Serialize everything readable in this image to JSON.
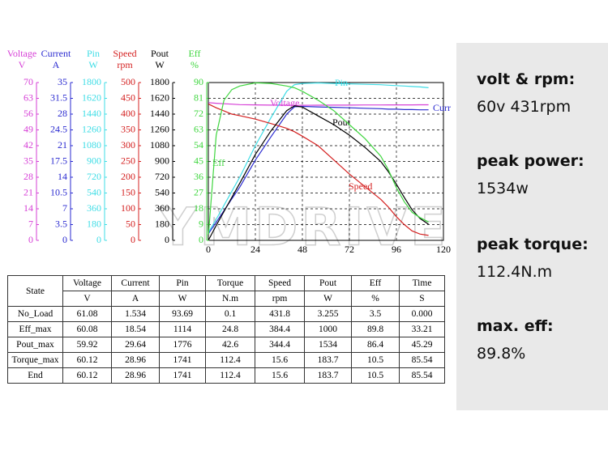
{
  "chart_data": {
    "type": "line",
    "x": [
      0.1,
      4,
      8,
      12,
      16,
      24,
      32,
      40,
      44,
      48,
      56,
      64,
      72,
      80,
      88,
      92,
      96,
      100,
      104,
      108,
      112.4
    ],
    "xlim": [
      0,
      120
    ],
    "xticks": [
      0,
      24,
      48,
      72,
      96,
      120
    ],
    "grid": true,
    "axes": [
      {
        "name": "Voltage",
        "unit": "V",
        "color": "#d63fd6",
        "ylim": [
          0,
          70
        ],
        "yticks": [
          0,
          7,
          14,
          21,
          28,
          35,
          42,
          49,
          56,
          63,
          70
        ]
      },
      {
        "name": "Current",
        "unit": "A",
        "color": "#2a2ad0",
        "ylim": [
          0,
          35
        ],
        "yticks": [
          0,
          3.5,
          7,
          10.5,
          14,
          17.5,
          21,
          24.5,
          28,
          31.5,
          35
        ]
      },
      {
        "name": "Pin",
        "unit": "W",
        "color": "#3fdde6",
        "ylim": [
          0,
          1800
        ],
        "yticks": [
          0,
          180,
          360,
          540,
          720,
          900,
          1080,
          1260,
          1440,
          1620,
          1800
        ]
      },
      {
        "name": "Speed",
        "unit": "rpm",
        "color": "#d42020",
        "ylim": [
          0,
          500
        ],
        "yticks": [
          0,
          50,
          100,
          150,
          200,
          250,
          300,
          350,
          400,
          450,
          500
        ]
      },
      {
        "name": "Pout",
        "unit": "W",
        "color": "#000000",
        "ylim": [
          0,
          1800
        ],
        "yticks": [
          0,
          180,
          360,
          540,
          720,
          900,
          1080,
          1260,
          1440,
          1620,
          1800
        ]
      },
      {
        "name": "Eff",
        "unit": "%",
        "color": "#3fd63f",
        "ylim": [
          0,
          90
        ],
        "yticks": [
          0,
          9,
          18,
          27,
          36,
          45,
          54,
          63,
          72,
          81,
          90
        ]
      }
    ],
    "series": [
      {
        "name": "Voltage",
        "axis": 0,
        "color": "#d63fd6",
        "values": [
          61.08,
          60.8,
          60.6,
          60.4,
          60.2,
          60.08,
          60,
          59.95,
          59.92,
          59.9,
          59.95,
          60,
          60,
          60.05,
          60.05,
          60.1,
          60.1,
          60.1,
          60.1,
          60.12,
          60.12
        ]
      },
      {
        "name": "Curr",
        "axis": 1,
        "color": "#2a2ad0",
        "values": [
          1.534,
          4,
          6.6,
          9.2,
          11.8,
          17.8,
          23,
          28,
          29.64,
          29.7,
          29.6,
          29.5,
          29.4,
          29.3,
          29.2,
          29.1,
          29.1,
          29,
          29,
          28.96,
          28.96
        ]
      },
      {
        "name": "Pin",
        "axis": 2,
        "color": "#3fdde6",
        "values": [
          93.69,
          240,
          400,
          560,
          720,
          1080,
          1400,
          1700,
          1776,
          1790,
          1795,
          1790,
          1785,
          1780,
          1775,
          1770,
          1765,
          1760,
          1755,
          1750,
          1741
        ]
      },
      {
        "name": "Speed",
        "axis": 3,
        "color": "#d42020",
        "values": [
          431.8,
          420,
          410,
          400,
          395,
          384,
          370,
          355,
          344,
          330,
          300,
          255,
          210,
          170,
          130,
          105,
          75,
          50,
          30,
          20,
          15.6
        ]
      },
      {
        "name": "Pout",
        "axis": 4,
        "color": "#000000",
        "values": [
          3.255,
          170,
          330,
          490,
          650,
          980,
          1250,
          1480,
          1534,
          1520,
          1420,
          1320,
          1200,
          1060,
          900,
          780,
          640,
          490,
          350,
          250,
          183.7
        ]
      },
      {
        "name": "Eff",
        "axis": 5,
        "color": "#3fd63f",
        "values": [
          3.5,
          60,
          80,
          86,
          88,
          89.8,
          89.5,
          88,
          87,
          85,
          80,
          74,
          66,
          58,
          48,
          40,
          30,
          22,
          16,
          13,
          10.5
        ]
      }
    ]
  },
  "watermark": "YMDRIVE",
  "table": {
    "header": [
      "State",
      "Voltage",
      "Current",
      "Pin",
      "Torque",
      "Speed",
      "Pout",
      "Eff",
      "Time"
    ],
    "units": [
      "V",
      "A",
      "W",
      "N.m",
      "rpm",
      "W",
      "%",
      "S"
    ],
    "rows": [
      [
        "No_Load",
        "61.08",
        "1.534",
        "93.69",
        "0.1",
        "431.8",
        "3.255",
        "3.5",
        "0.000"
      ],
      [
        "Eff_max",
        "60.08",
        "18.54",
        "1114",
        "24.8",
        "384.4",
        "1000",
        "89.8",
        "33.21"
      ],
      [
        "Pout_max",
        "59.92",
        "29.64",
        "1776",
        "42.6",
        "344.4",
        "1534",
        "86.4",
        "45.29"
      ],
      [
        "Torque_max",
        "60.12",
        "28.96",
        "1741",
        "112.4",
        "15.6",
        "183.7",
        "10.5",
        "85.54"
      ],
      [
        "End",
        "60.12",
        "28.96",
        "1741",
        "112.4",
        "15.6",
        "183.7",
        "10.5",
        "85.54"
      ]
    ]
  },
  "panel": [
    {
      "label": "volt & rpm:",
      "value": "60v 431rpm"
    },
    {
      "label": "peak power:",
      "value": "1534w"
    },
    {
      "label": "peak torque:",
      "value": "112.4N.m"
    },
    {
      "label": "max. eff:",
      "value": "89.8%"
    }
  ]
}
